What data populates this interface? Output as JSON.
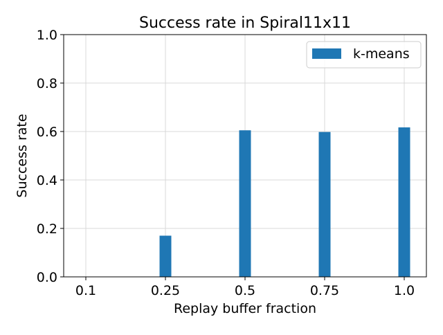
{
  "chart_data": {
    "type": "bar",
    "title": "Success rate in Spiral11x11",
    "xlabel": "Replay buffer fraction",
    "ylabel": "Success rate",
    "categories": [
      "0.1",
      "0.25",
      "0.5",
      "0.75",
      "1.0"
    ],
    "series": [
      {
        "name": "k-means",
        "values": [
          0.0,
          0.17,
          0.605,
          0.598,
          0.617
        ],
        "color": "#1f77b4"
      }
    ],
    "ylim": [
      0.0,
      1.0
    ],
    "yticks": [
      "0.0",
      "0.2",
      "0.4",
      "0.6",
      "0.8",
      "1.0"
    ],
    "grid": true,
    "legend_position": "top-right"
  }
}
